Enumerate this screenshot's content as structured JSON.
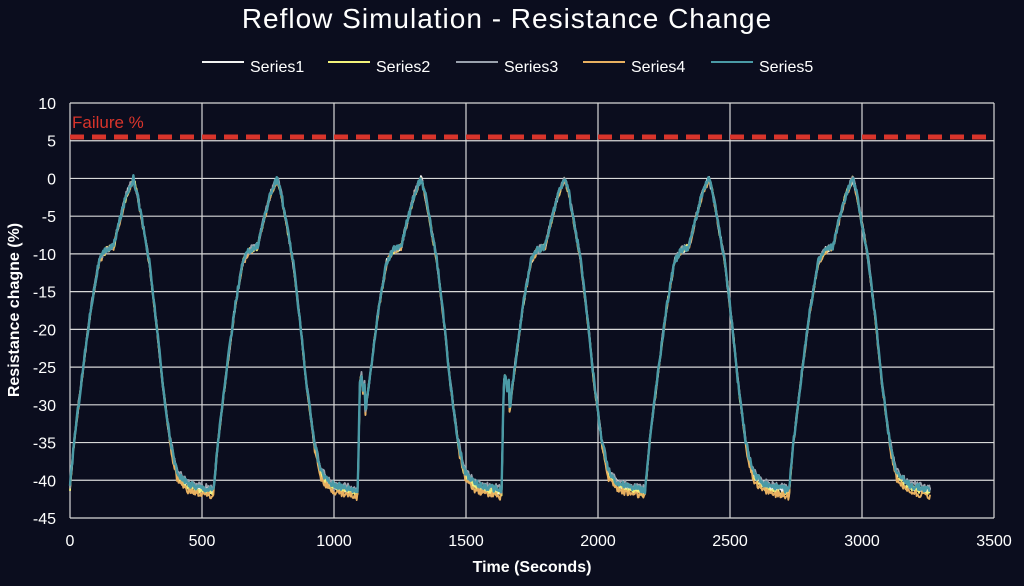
{
  "chart_data": {
    "type": "line",
    "title": "Reflow Simulation - Resistance Change",
    "xlabel": "Time (Seconds)",
    "ylabel": "Resistance chagne (%)",
    "xlim": [
      0,
      3500
    ],
    "ylim": [
      -45,
      10
    ],
    "x_ticks": [
      0,
      500,
      1000,
      1500,
      2000,
      2500,
      3000,
      3500
    ],
    "y_ticks": [
      10,
      5,
      0,
      -5,
      -10,
      -15,
      -20,
      -25,
      -30,
      -35,
      -40,
      -45
    ],
    "grid": true,
    "legend_position": "top",
    "background_color": "#0b0d1e",
    "threshold": {
      "label": "Failure %",
      "value": 5.5,
      "color": "#d9342b",
      "style": "dashed"
    },
    "series": [
      {
        "name": "Series1",
        "color": "#f2f2f2",
        "offset": 0
      },
      {
        "name": "Series2",
        "color": "#f2f27a",
        "offset": -0.2
      },
      {
        "name": "Series3",
        "color": "#9aa1ad",
        "offset": 0.25
      },
      {
        "name": "Series4",
        "color": "#e8b060",
        "offset": -0.45
      },
      {
        "name": "Series5",
        "color": "#4a9aa6",
        "offset": 0.1
      }
    ],
    "cycle_shape": {
      "cycle_starts": [
        0,
        545,
        1090,
        1635,
        2180,
        2725
      ],
      "end_time": 3260,
      "points": [
        [
          0,
          -41
        ],
        [
          15,
          -35
        ],
        [
          50,
          -25
        ],
        [
          80,
          -17
        ],
        [
          110,
          -11
        ],
        [
          135,
          -9.5
        ],
        [
          165,
          -9
        ],
        [
          185,
          -6
        ],
        [
          215,
          -2
        ],
        [
          240,
          0
        ],
        [
          255,
          -2
        ],
        [
          275,
          -6
        ],
        [
          300,
          -11
        ],
        [
          330,
          -20
        ],
        [
          350,
          -27
        ],
        [
          380,
          -35
        ],
        [
          405,
          -39
        ],
        [
          440,
          -40.5
        ],
        [
          480,
          -41
        ],
        [
          525,
          -41.3
        ],
        [
          545,
          -41.5
        ]
      ],
      "restart_glitch": {
        "cycles": [
          2,
          3
        ],
        "points": [
          [
            0,
            -41.5
          ],
          [
            8,
            -27
          ],
          [
            14,
            -26
          ],
          [
            20,
            -28
          ],
          [
            28,
            -27
          ]
        ]
      }
    }
  }
}
